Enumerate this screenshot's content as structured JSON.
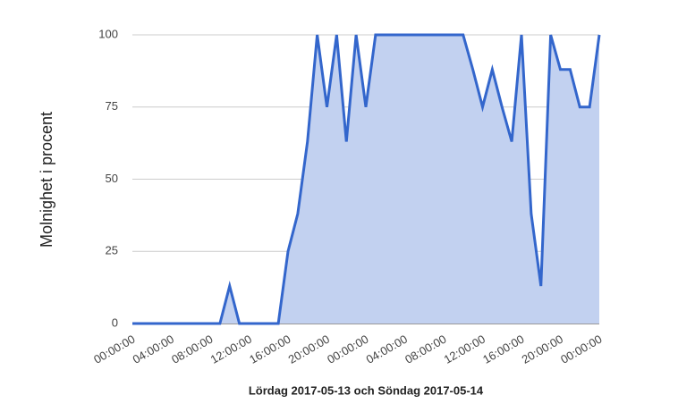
{
  "chart_data": {
    "type": "area",
    "x_label": "Lördag 2017-05-13 och Söndag 2017-05-14",
    "y_label": "Molnighet i procent",
    "categories": [
      "00:00:00",
      null,
      null,
      null,
      "04:00:00",
      null,
      null,
      null,
      "08:00:00",
      null,
      null,
      null,
      "12:00:00",
      null,
      null,
      null,
      "16:00:00",
      null,
      null,
      null,
      "20:00:00",
      null,
      null,
      null,
      "00:00:00",
      null,
      null,
      null,
      "04:00:00",
      null,
      null,
      null,
      "08:00:00",
      null,
      null,
      null,
      "12:00:00",
      null,
      null,
      null,
      "16:00:00",
      null,
      null,
      null,
      "20:00:00",
      null,
      null,
      null,
      "00:00:00"
    ],
    "values": [
      0,
      0,
      0,
      0,
      0,
      0,
      0,
      0,
      0,
      0,
      13,
      0,
      0,
      0,
      0,
      0,
      25,
      38,
      63,
      100,
      75,
      100,
      63,
      100,
      75,
      100,
      100,
      100,
      100,
      100,
      100,
      100,
      100,
      100,
      100,
      88,
      75,
      88,
      75,
      63,
      100,
      38,
      13,
      100,
      88,
      88,
      75,
      75,
      100
    ],
    "color": "#3366cc",
    "fill": "#c2d1f0",
    "ylim": [
      0,
      100
    ],
    "yticks": [
      0,
      25,
      50,
      75,
      100
    ],
    "grid": true
  }
}
